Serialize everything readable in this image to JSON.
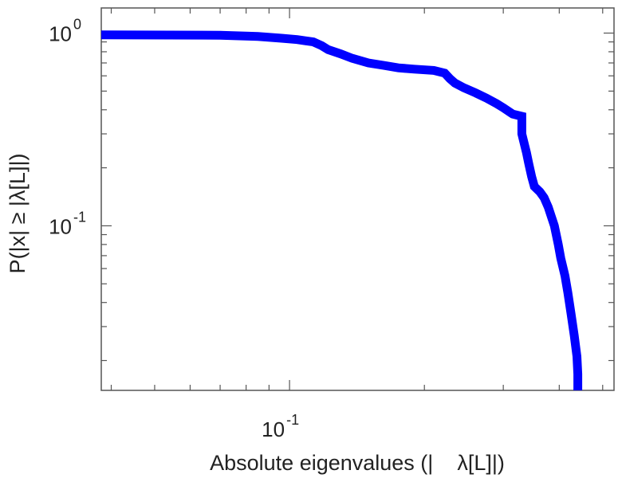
{
  "chart_data": {
    "type": "line",
    "xlabel": "Absolute eigenvalues (|    λ[L]|)",
    "ylabel": "P(|x| ≥ |λ[L]|)",
    "x_scale": "log",
    "y_scale": "log",
    "xlim": [
      0.038,
      0.53
    ],
    "ylim": [
      0.014,
      1.35
    ],
    "grid": false,
    "x_ticks": [
      {
        "base": "10",
        "exp": "-1",
        "value": 0.1
      }
    ],
    "y_ticks": [
      {
        "base": "10",
        "exp": "0",
        "value": 1.0
      },
      {
        "base": "10",
        "exp": "-1",
        "value": 0.1
      }
    ],
    "series": [
      {
        "color": "#0000ff",
        "x": [
          0.038,
          0.07,
          0.085,
          0.096,
          0.104,
          0.113,
          0.118,
          0.122,
          0.13,
          0.138,
          0.15,
          0.162,
          0.175,
          0.19,
          0.21,
          0.222,
          0.228,
          0.234,
          0.245,
          0.26,
          0.275,
          0.29,
          0.3,
          0.315,
          0.33,
          0.33,
          0.335,
          0.338,
          0.342,
          0.347,
          0.352,
          0.362,
          0.37,
          0.378,
          0.39,
          0.398,
          0.403,
          0.412,
          0.418,
          0.425,
          0.432,
          0.438,
          0.44,
          0.44
        ],
        "y": [
          0.98,
          0.975,
          0.96,
          0.94,
          0.925,
          0.9,
          0.86,
          0.82,
          0.78,
          0.74,
          0.7,
          0.68,
          0.66,
          0.65,
          0.64,
          0.62,
          0.58,
          0.55,
          0.52,
          0.49,
          0.46,
          0.43,
          0.41,
          0.38,
          0.37,
          0.3,
          0.26,
          0.24,
          0.21,
          0.18,
          0.16,
          0.15,
          0.14,
          0.125,
          0.1,
          0.08,
          0.068,
          0.055,
          0.045,
          0.035,
          0.027,
          0.021,
          0.017,
          0.014
        ]
      }
    ]
  }
}
